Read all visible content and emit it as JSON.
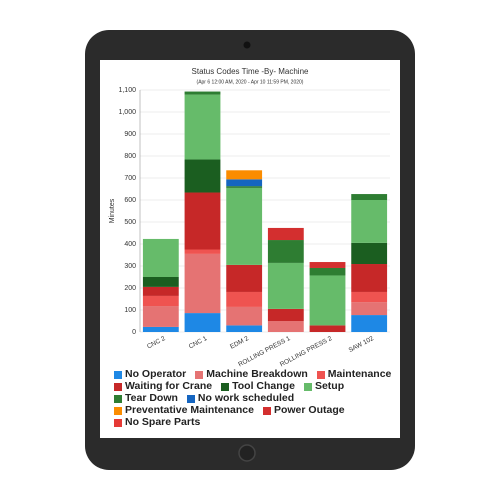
{
  "chart_data": {
    "type": "stacked_bar",
    "title": "Status Codes Time -By- Machine",
    "subtitle": "(Apr 6 12:00 AM, 2020 - Apr 10 11:59 PM, 2020)",
    "y_label": "Minutes",
    "categories": [
      "CNC 2",
      "CNC 1",
      "EDM 2",
      "ROLLING PRESS 1",
      "ROLLING PRESS 2",
      "SAW 102"
    ],
    "ylim": [
      0,
      1100
    ],
    "yticks": [
      0,
      100,
      200,
      300,
      400,
      500,
      600,
      700,
      800,
      900,
      {
        "value": 1000,
        "label": "1,000"
      },
      {
        "value": 1100,
        "label": "1,100"
      }
    ],
    "grid": true,
    "series": [
      {
        "name": "No Operator",
        "color": "#1e88e5",
        "values": [
          23,
          86,
          30,
          0,
          0,
          77
        ]
      },
      {
        "name": "Machine Breakdown",
        "color": "#e57373",
        "values": [
          95,
          269,
          84,
          50,
          0,
          59
        ]
      },
      {
        "name": "Maintenance",
        "color": "#ef5350",
        "values": [
          46,
          20,
          68,
          0,
          0,
          46
        ]
      },
      {
        "name": "Waiting for Crane",
        "color": "#c62828",
        "values": [
          41,
          259,
          123,
          55,
          30,
          127
        ]
      },
      {
        "name": "Tool Change",
        "color": "#1b5e20",
        "values": [
          45,
          150,
          0,
          0,
          0,
          96
        ]
      },
      {
        "name": "Setup",
        "color": "#66bb6a",
        "values": [
          173,
          295,
          350,
          209,
          227,
          195
        ]
      },
      {
        "name": "Tear Down",
        "color": "#2e7d32",
        "values": [
          0,
          14,
          8,
          104,
          34,
          27
        ]
      },
      {
        "name": "No work scheduled",
        "color": "#1565c0",
        "values": [
          0,
          0,
          31,
          0,
          0,
          0
        ]
      },
      {
        "name": "Preventative Maintenance",
        "color": "#fb8c00",
        "values": [
          0,
          0,
          41,
          0,
          0,
          0
        ]
      },
      {
        "name": "Power Outage",
        "color": "#d32f2f",
        "values": [
          0,
          0,
          0,
          55,
          27,
          0
        ]
      },
      {
        "name": "No Spare Parts",
        "color": "#e53935",
        "values": [
          0,
          0,
          0,
          0,
          0,
          0
        ]
      }
    ]
  }
}
